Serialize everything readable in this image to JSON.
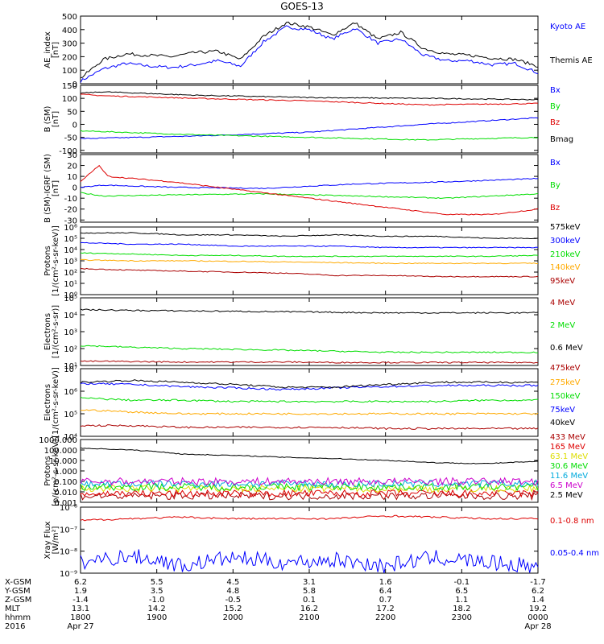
{
  "figure": {
    "title": "GOES-13"
  },
  "colors": {
    "black": "#000000",
    "blue": "#0000ff",
    "red": "#dd0000",
    "green": "#00dd00",
    "orange": "#ffaa00",
    "dark_red": "#aa0000",
    "yellow": "#dddd00",
    "cyan": "#00aadd",
    "magenta": "#cc00cc"
  },
  "chart_data": [
    {
      "type": "line",
      "ylabel": [
        "AE_index",
        "[nT]"
      ],
      "ylim": [
        0,
        500
      ],
      "yscale": "linear",
      "yticks": [
        "0",
        "100",
        "200",
        "300",
        "400",
        "500"
      ],
      "yticks_values": [
        0,
        100,
        200,
        300,
        400,
        500
      ],
      "series": [
        {
          "name": "Kyoto AE",
          "color": "blue",
          "x": [
            0,
            0.05,
            0.1,
            0.15,
            0.2,
            0.25,
            0.3,
            0.35,
            0.4,
            0.45,
            0.5,
            0.55,
            0.6,
            0.65,
            0.7,
            0.75,
            0.8,
            0.85,
            0.9,
            0.95,
            1.0
          ],
          "values": [
            20,
            110,
            150,
            130,
            120,
            140,
            170,
            130,
            310,
            420,
            400,
            330,
            410,
            300,
            330,
            210,
            170,
            170,
            140,
            150,
            80
          ]
        },
        {
          "name": "Themis AE",
          "color": "black",
          "x": [
            0,
            0.05,
            0.1,
            0.15,
            0.2,
            0.25,
            0.3,
            0.35,
            0.4,
            0.45,
            0.5,
            0.55,
            0.6,
            0.65,
            0.7,
            0.75,
            0.8,
            0.85,
            0.9,
            0.95,
            1.0
          ],
          "values": [
            40,
            180,
            220,
            210,
            200,
            230,
            240,
            180,
            350,
            450,
            420,
            360,
            450,
            330,
            380,
            260,
            220,
            210,
            190,
            180,
            130
          ]
        }
      ]
    },
    {
      "type": "line",
      "ylabel": [
        "B (SM)",
        "[nT]"
      ],
      "ylim": [
        -110,
        150
      ],
      "yscale": "linear",
      "yticks": [
        "-100",
        "-50",
        "0",
        "50",
        "100",
        "150"
      ],
      "yticks_values": [
        -100,
        -50,
        0,
        50,
        100,
        150
      ],
      "series": [
        {
          "name": "Bx",
          "color": "blue",
          "x": [
            0,
            0.25,
            0.5,
            0.75,
            1.0
          ],
          "values": [
            -55,
            -45,
            -30,
            0,
            25
          ]
        },
        {
          "name": "By",
          "color": "green",
          "x": [
            0,
            0.25,
            0.5,
            0.75,
            1.0
          ],
          "values": [
            -25,
            -40,
            -50,
            -60,
            -50
          ]
        },
        {
          "name": "Bz",
          "color": "red",
          "x": [
            0,
            0.05,
            0.25,
            0.5,
            0.75,
            1.0
          ],
          "values": [
            115,
            110,
            100,
            90,
            75,
            80
          ]
        },
        {
          "name": "Bmag",
          "color": "black",
          "x": [
            0,
            0.05,
            0.25,
            0.5,
            0.75,
            1.0
          ],
          "values": [
            120,
            125,
            112,
            103,
            100,
            95
          ]
        }
      ]
    },
    {
      "type": "line",
      "ylabel": [
        "B (SM)-IGRF (SM)",
        "[nT]"
      ],
      "ylim": [
        -32,
        30
      ],
      "yscale": "linear",
      "yticks": [
        "-30",
        "-20",
        "-10",
        "0",
        "10",
        "20",
        "30"
      ],
      "yticks_values": [
        -30,
        -20,
        -10,
        0,
        10,
        20,
        30
      ],
      "series": [
        {
          "name": "Bx",
          "color": "blue",
          "x": [
            0,
            0.05,
            0.2,
            0.4,
            0.6,
            0.8,
            1.0
          ],
          "values": [
            0,
            2,
            0,
            -1,
            3,
            5,
            8
          ]
        },
        {
          "name": "By",
          "color": "green",
          "x": [
            0,
            0.05,
            0.2,
            0.4,
            0.6,
            0.8,
            1.0
          ],
          "values": [
            -5,
            -8,
            -7,
            -6,
            -8,
            -10,
            -6
          ]
        },
        {
          "name": "Bz",
          "color": "red",
          "x": [
            0,
            0.04,
            0.06,
            0.2,
            0.4,
            0.6,
            0.8,
            0.9,
            1.0
          ],
          "values": [
            5,
            20,
            10,
            5,
            -5,
            -15,
            -25,
            -25,
            -20
          ]
        }
      ]
    },
    {
      "type": "line",
      "ylabel": [
        "Protons",
        "[1/(cm²-s-sr-keV)]"
      ],
      "ylim": [
        1,
        1000000
      ],
      "yscale": "log",
      "yticks": [
        "10⁰",
        "10¹",
        "10²",
        "10³",
        "10⁴",
        "10⁵",
        "10⁶"
      ],
      "yticks_values": [
        1,
        10,
        100,
        1000,
        10000,
        100000,
        1000000
      ],
      "series": [
        {
          "name": "575keV",
          "color": "black",
          "values": [
            300000.0,
            300000.0,
            200000.0,
            200000.0,
            150000.0,
            200000.0,
            150000.0,
            150000.0,
            100000.0,
            100000.0
          ]
        },
        {
          "name": "300keV",
          "color": "blue",
          "values": [
            40000.0,
            30000.0,
            30000.0,
            20000.0,
            20000.0,
            20000.0,
            15000.0,
            15000.0,
            15000.0,
            15000.0
          ]
        },
        {
          "name": "210keV",
          "color": "green",
          "values": [
            5000.0,
            4000.0,
            3000.0,
            3000.0,
            2500.0,
            2500.0,
            2500.0,
            2500.0,
            2500.0,
            3000.0
          ]
        },
        {
          "name": "140keV",
          "color": "orange",
          "values": [
            1200.0,
            1000.0,
            1000.0,
            900.0,
            800.0,
            700.0,
            600.0,
            600.0,
            600.0,
            600.0
          ]
        },
        {
          "name": "95keV",
          "color": "dark_red",
          "values": [
            200.0,
            150.0,
            120.0,
            100.0,
            80.0,
            50.0,
            50.0,
            40.0,
            40.0,
            40.0
          ]
        }
      ]
    },
    {
      "type": "line",
      "ylabel": [
        "Electrons",
        "[1/(cm²-s-sr)]"
      ],
      "ylim": [
        10,
        100000
      ],
      "yscale": "log",
      "yticks": [
        "10¹",
        "10²",
        "10³",
        "10⁴",
        "10⁵"
      ],
      "yticks_values": [
        10,
        100,
        1000,
        10000,
        100000
      ],
      "series": [
        {
          "name": "4 MeV",
          "color": "dark_red",
          "values": [
            18.0,
            17.0,
            16.0,
            16.0,
            16.0,
            15.0,
            15.0,
            15.0,
            15.0,
            15.0
          ]
        },
        {
          "name": "2 MeV",
          "color": "green",
          "values": [
            150.0,
            120.0,
            100.0,
            90.0,
            80.0,
            70.0,
            60.0,
            60.0,
            60.0,
            60.0
          ]
        },
        {
          "name": "0.6 MeV",
          "color": "black",
          "values": [
            20000.0,
            18000.0,
            17000.0,
            16000.0,
            15000.0,
            14000.0,
            13000.0,
            13000.0,
            13000.0,
            13000.0
          ]
        }
      ]
    },
    {
      "type": "line",
      "ylabel": [
        "Electrons",
        "[1/(cm²-s-sr-keV)]"
      ],
      "ylim": [
        10000,
        10000000
      ],
      "yscale": "log",
      "yticks": [
        "10⁴",
        "10⁵",
        "10⁶",
        "10⁷"
      ],
      "yticks_values": [
        10000,
        100000,
        1000000,
        10000000
      ],
      "series": [
        {
          "name": "475keV",
          "color": "dark_red",
          "values": [
            30000.0,
            30000.0,
            25000.0,
            25000.0,
            25000.0,
            25000.0,
            22000.0,
            22000.0,
            22000.0,
            22000.0
          ]
        },
        {
          "name": "275keV",
          "color": "orange",
          "values": [
            150000.0,
            120000.0,
            100000.0,
            100000.0,
            100000.0,
            100000.0,
            100000.0,
            100000.0,
            100000.0,
            100000.0
          ]
        },
        {
          "name": "150keV",
          "color": "green",
          "values": [
            500000.0,
            400000.0,
            400000.0,
            350000.0,
            350000.0,
            350000.0,
            350000.0,
            350000.0,
            400000.0,
            400000.0
          ]
        },
        {
          "name": "75keV",
          "color": "blue",
          "values": [
            2200000.0,
            2000000.0,
            1600000.0,
            1400000.0,
            1200000.0,
            1400000.0,
            1600000.0,
            1800000.0,
            1800000.0,
            1800000.0
          ]
        },
        {
          "name": "40keV",
          "color": "black",
          "values": [
            2500000.0,
            3000000.0,
            2500000.0,
            2000000.0,
            1500000.0,
            1500000.0,
            2000000.0,
            2500000.0,
            2500000.0,
            2500000.0
          ]
        }
      ]
    },
    {
      "type": "line",
      "ylabel": [
        "Protons",
        "[p/(cm²-s-sr-keV)]"
      ],
      "ylim": [
        0.001,
        1000
      ],
      "yscale": "log",
      "yticks": [
        "0.001",
        "0.010",
        "0.100",
        "1.000",
        "10.000",
        "100.000",
        "1000.000"
      ],
      "yticks_values": [
        0.001,
        0.01,
        0.1,
        1,
        10,
        100,
        1000
      ],
      "series": [
        {
          "name": "433 MeV",
          "color": "dark_red",
          "values": [
            0.004,
            0.004,
            0.004,
            0.004,
            0.004,
            0.004,
            0.004,
            0.004,
            0.004,
            0.004
          ]
        },
        {
          "name": "165 MeV",
          "color": "red",
          "values": [
            0.007,
            0.007,
            0.007,
            0.007,
            0.007,
            0.007,
            0.007,
            0.007,
            0.007,
            0.007
          ]
        },
        {
          "name": "63.1 MeV",
          "color": "yellow",
          "values": [
            0.02,
            0.02,
            0.02,
            0.02,
            0.02,
            0.02,
            0.02,
            0.02,
            0.02,
            0.02
          ]
        },
        {
          "name": "30.6 MeV",
          "color": "green",
          "values": [
            0.03,
            0.03,
            0.03,
            0.03,
            0.03,
            0.03,
            0.03,
            0.03,
            0.03,
            0.03
          ]
        },
        {
          "name": "11.6 MeV",
          "color": "cyan",
          "values": [
            0.06,
            0.06,
            0.06,
            0.06,
            0.06,
            0.06,
            0.06,
            0.06,
            0.06,
            0.06
          ]
        },
        {
          "name": "6.5 MeV",
          "color": "magenta",
          "values": [
            0.1,
            0.1,
            0.1,
            0.1,
            0.1,
            0.1,
            0.1,
            0.1,
            0.1,
            0.1
          ]
        },
        {
          "name": "2.5 MeV",
          "color": "black",
          "values": [
            150,
            100,
            40,
            30,
            20,
            15,
            10,
            6,
            5,
            8
          ]
        }
      ]
    },
    {
      "type": "line",
      "ylabel": [
        "Xray Flux",
        "[W/m²]"
      ],
      "ylim": [
        1e-09,
        1e-06
      ],
      "yscale": "log",
      "yticks": [
        "10⁻⁹",
        "10⁻⁸",
        "10⁻⁷",
        "10⁻⁶"
      ],
      "yticks_values": [
        1e-09,
        1e-08,
        1e-07,
        1e-06
      ],
      "series": [
        {
          "name": "0.1-0.8 nm",
          "color": "red",
          "values": [
            2.5e-07,
            3e-07,
            3.5e-07,
            3e-07,
            3e-07,
            3e-07,
            4e-07,
            3.5e-07,
            3e-07,
            3e-07
          ]
        },
        {
          "name": "0.05-0.4 nm",
          "color": "blue",
          "values": [
            3e-09,
            6e-09,
            2e-09,
            5e-09,
            3e-09,
            4e-09,
            2e-09,
            5e-09,
            3e-09,
            2e-09
          ]
        }
      ]
    }
  ],
  "xaxis": {
    "row_labels": [
      "X-GSM",
      "Y-GSM",
      "Z-GSM",
      "MLT",
      "hhmm",
      "2016"
    ],
    "columns": [
      [
        "6.2",
        "1.9",
        "-1.4",
        "13.1",
        "1800",
        "Apr 27"
      ],
      [
        "5.5",
        "3.5",
        "-1.0",
        "14.2",
        "1900",
        ""
      ],
      [
        "4.5",
        "4.8",
        "-0.5",
        "15.2",
        "2000",
        ""
      ],
      [
        "3.1",
        "5.8",
        "0.1",
        "16.2",
        "2100",
        ""
      ],
      [
        "1.6",
        "6.4",
        "0.7",
        "17.2",
        "2200",
        ""
      ],
      [
        "-0.1",
        "6.5",
        "1.1",
        "18.2",
        "2300",
        ""
      ],
      [
        "-1.7",
        "6.2",
        "1.4",
        "19.2",
        "0000",
        "Apr 28"
      ]
    ]
  }
}
